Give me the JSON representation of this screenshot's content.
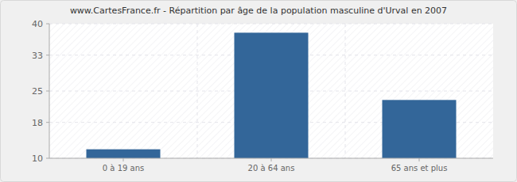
{
  "chart_data": {
    "type": "bar",
    "title": "www.CartesFrance.fr - Répartition par âge de la population masculine d'Urval en 2007",
    "categories": [
      "0 à 19 ans",
      "20 à 64 ans",
      "65 ans et plus"
    ],
    "values": [
      12,
      38,
      23
    ],
    "color": "#336699",
    "ylim": [
      10,
      40
    ],
    "yticks": [
      10,
      18,
      25,
      33,
      40
    ],
    "grid": true
  }
}
